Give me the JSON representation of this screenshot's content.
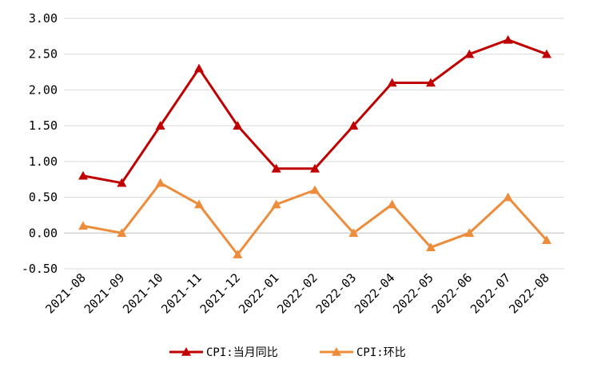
{
  "chart_data": {
    "type": "line",
    "categories": [
      "2021-08",
      "2021-09",
      "2021-10",
      "2021-11",
      "2021-12",
      "2022-01",
      "2022-02",
      "2022-03",
      "2022-04",
      "2022-05",
      "2022-06",
      "2022-07",
      "2022-08"
    ],
    "series": [
      {
        "name": "CPI:当月同比",
        "color": "#c00000",
        "marker": "triangle",
        "values": [
          0.8,
          0.7,
          1.5,
          2.3,
          1.5,
          0.9,
          0.9,
          1.5,
          2.1,
          2.1,
          2.5,
          2.7,
          2.5
        ]
      },
      {
        "name": "CPI:环比",
        "color": "#ed8c3a",
        "marker": "triangle",
        "values": [
          0.1,
          0.0,
          0.7,
          0.4,
          -0.3,
          0.4,
          0.6,
          0.0,
          0.4,
          -0.2,
          0.0,
          0.5,
          -0.1
        ]
      }
    ],
    "yticks": [
      "3.00",
      "2.50",
      "2.00",
      "1.50",
      "1.00",
      "0.50",
      "0.00",
      "-0.50"
    ],
    "ylim": [
      -0.5,
      3.0
    ],
    "grid": true,
    "legend": "bottom",
    "title": "",
    "xlabel": "",
    "ylabel": ""
  }
}
